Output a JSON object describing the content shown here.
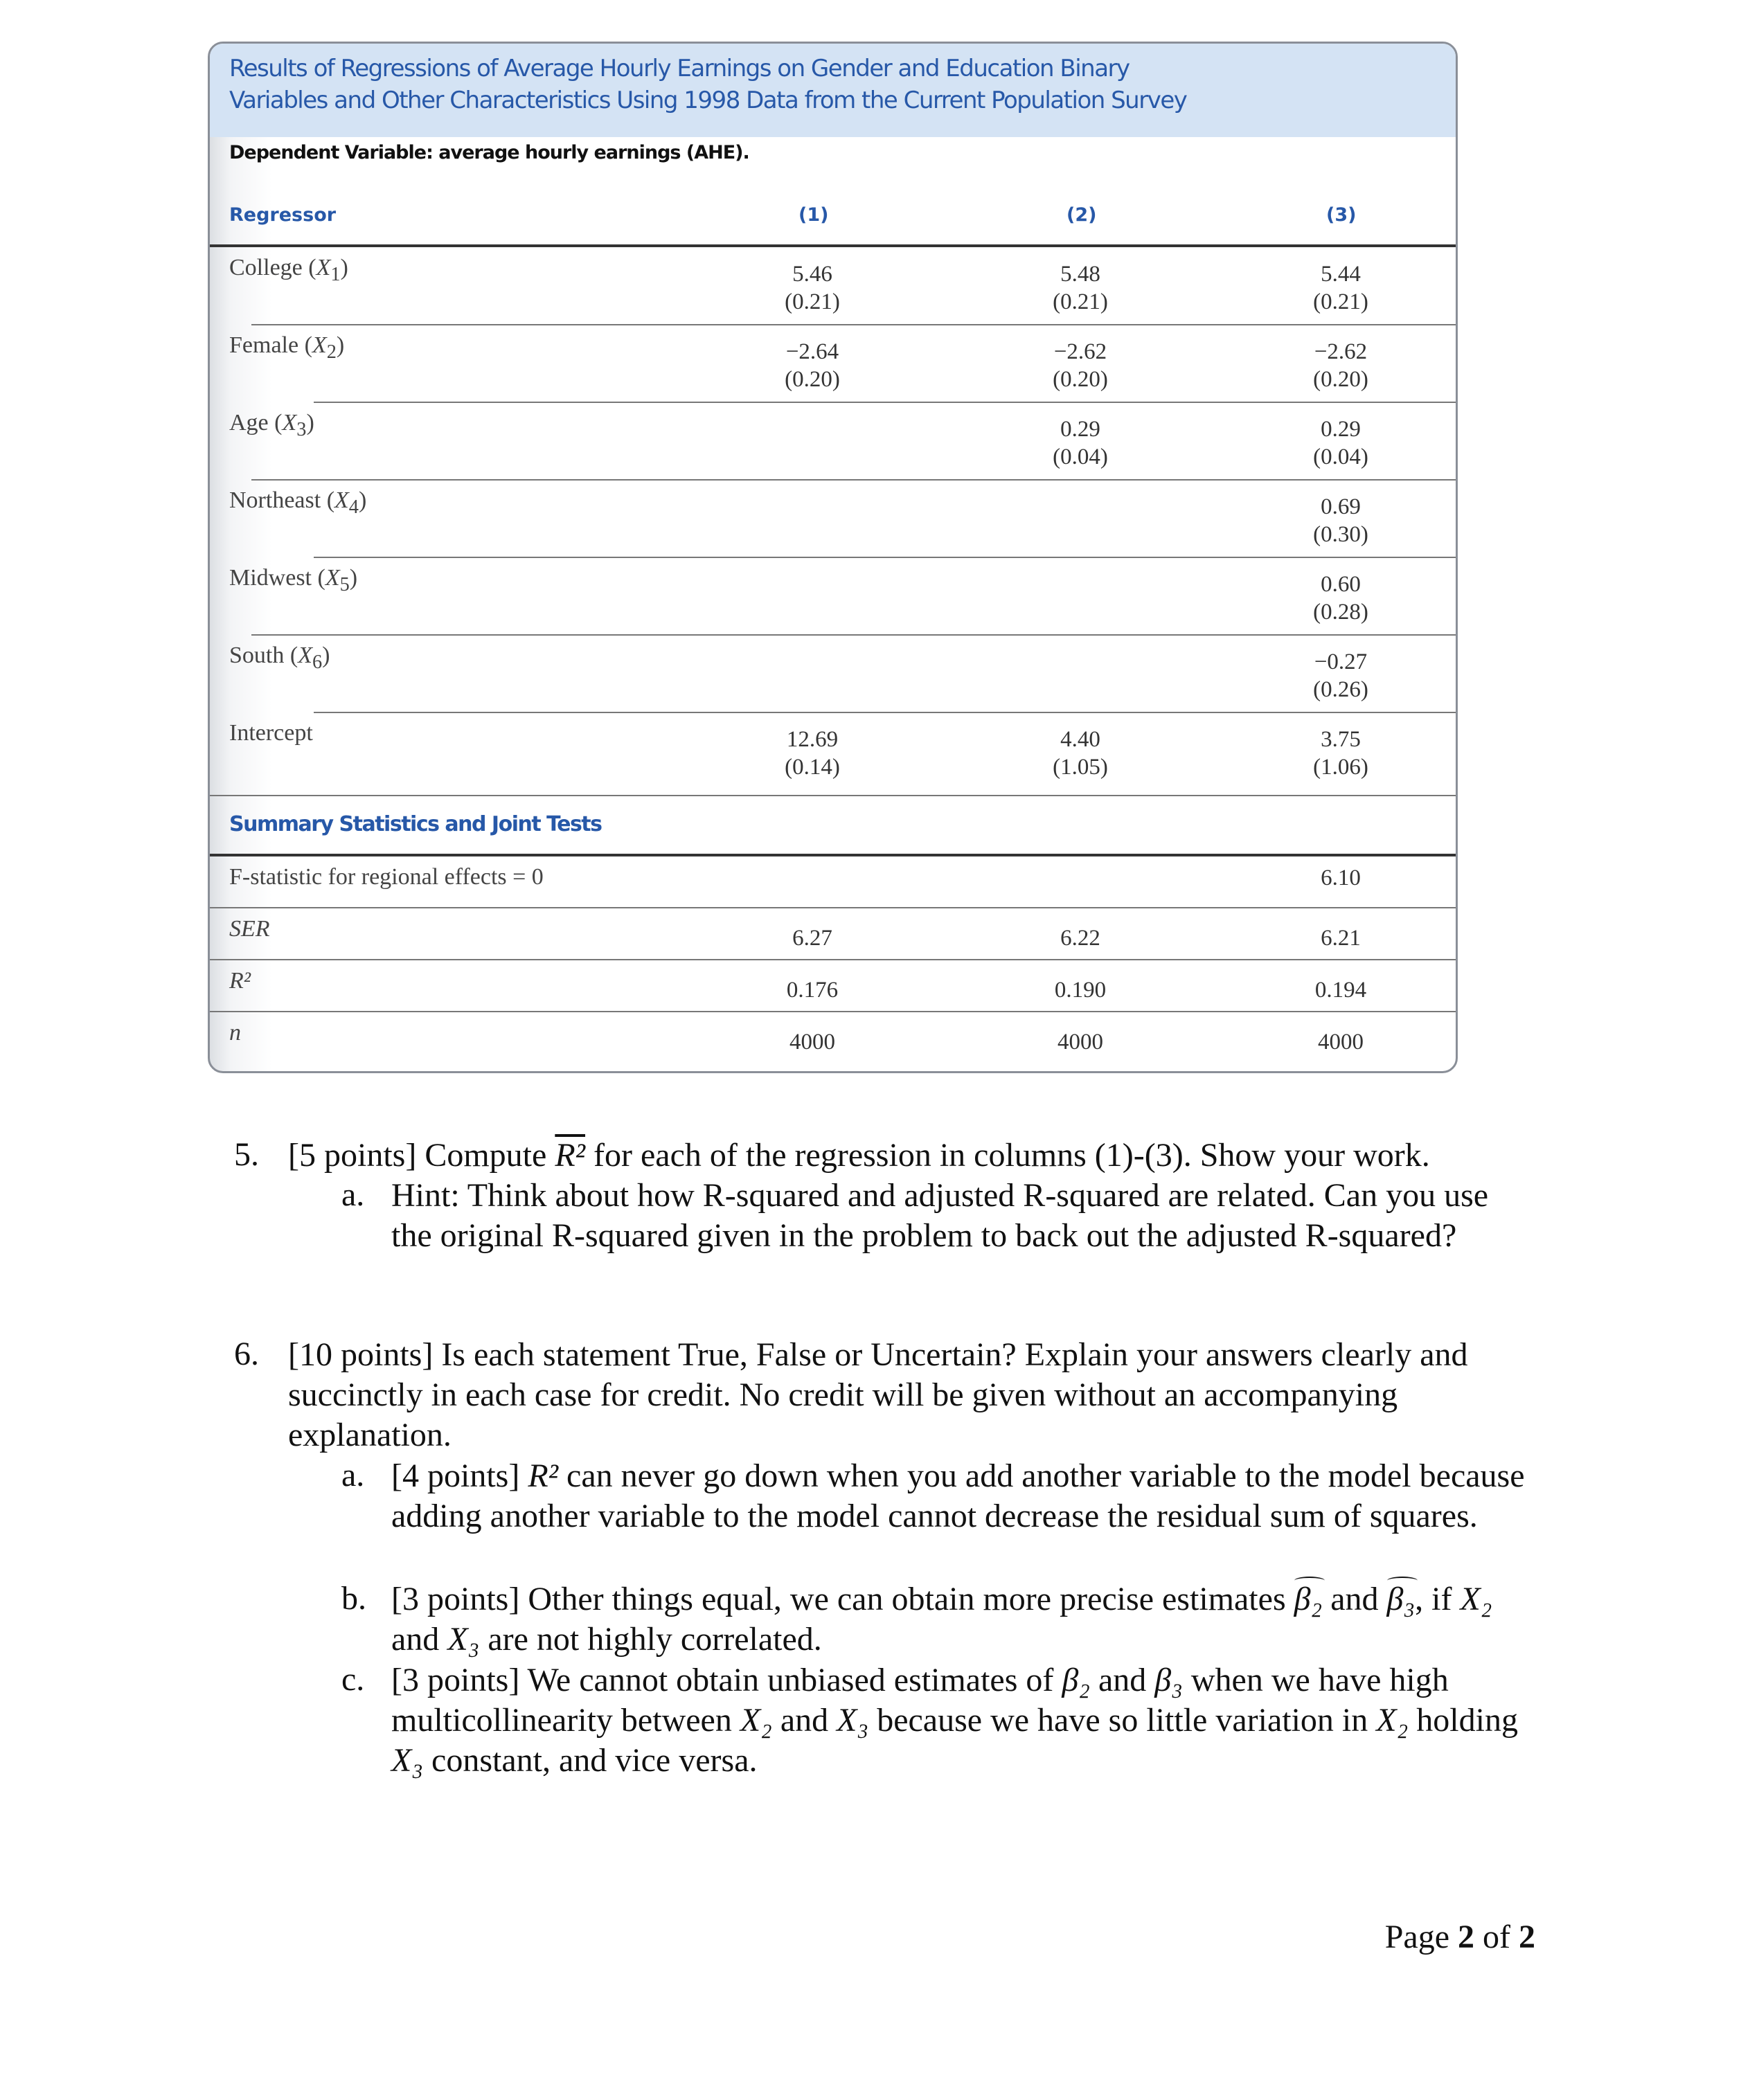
{
  "table": {
    "title_line1": "Results of Regressions of Average Hourly Earnings on Gender and Education Binary",
    "title_line2": "Variables and Other Characteristics Using 1998 Data from the Current Population Survey",
    "dependent_variable": "Dependent Variable: average hourly earnings (AHE).",
    "header": {
      "regressor": "Regressor",
      "col1": "(1)",
      "col2": "(2)",
      "col3": "(3)"
    },
    "rows": [
      {
        "label": "College",
        "var": "X",
        "sub": "1",
        "c1": "5.46",
        "c1se": "(0.21)",
        "c2": "5.48",
        "c2se": "(0.21)",
        "c3": "5.44",
        "c3se": "(0.21)"
      },
      {
        "label": "Female",
        "var": "X",
        "sub": "2",
        "c1": "−2.64",
        "c1se": "(0.20)",
        "c2": "−2.62",
        "c2se": "(0.20)",
        "c3": "−2.62",
        "c3se": "(0.20)"
      },
      {
        "label": "Age",
        "var": "X",
        "sub": "3",
        "c1": "",
        "c1se": "",
        "c2": "0.29",
        "c2se": "(0.04)",
        "c3": "0.29",
        "c3se": "(0.04)"
      },
      {
        "label": "Northeast",
        "var": "X",
        "sub": "4",
        "c1": "",
        "c1se": "",
        "c2": "",
        "c2se": "",
        "c3": "0.69",
        "c3se": "(0.30)"
      },
      {
        "label": "Midwest",
        "var": "X",
        "sub": "5",
        "c1": "",
        "c1se": "",
        "c2": "",
        "c2se": "",
        "c3": "0.60",
        "c3se": "(0.28)"
      },
      {
        "label": "South",
        "var": "X",
        "sub": "6",
        "c1": "",
        "c1se": "",
        "c2": "",
        "c2se": "",
        "c3": "−0.27",
        "c3se": "(0.26)"
      },
      {
        "label": "Intercept",
        "var": "",
        "sub": "",
        "c1": "12.69",
        "c1se": "(0.14)",
        "c2": "4.40",
        "c2se": "(1.05)",
        "c3": "3.75",
        "c3se": "(1.06)"
      }
    ],
    "summary_title": "Summary Statistics and Joint Tests",
    "summary_rows": [
      {
        "label": "F-statistic for regional effects = 0",
        "c1": "",
        "c2": "",
        "c3": "6.10"
      },
      {
        "label": "SER",
        "c1": "6.27",
        "c2": "6.22",
        "c3": "6.21"
      },
      {
        "label": "R²",
        "c1": "0.176",
        "c2": "0.190",
        "c3": "0.194"
      },
      {
        "label": "n",
        "c1": "4000",
        "c2": "4000",
        "c3": "4000"
      }
    ]
  },
  "questions": {
    "q5": {
      "number": "5.",
      "text_a": "[5 points] Compute ",
      "math": "R²",
      "text_b": " for each of the regression in columns (1)-(3). Show your work.",
      "sub_a_letter": "a.",
      "sub_a_text": "Hint: Think about how R-squared and adjusted R-squared are related. Can you use the original R-squared given in the problem to back out the adjusted R-squared?"
    },
    "q6": {
      "number": "6.",
      "text": "[10 points] Is each statement True, False or Uncertain? Explain your answers clearly and succinctly in each case for credit. No credit will be given without an accompanying explanation.",
      "a_letter": "a.",
      "a_1": "[4 points] ",
      "a_math": "R²",
      "a_2": " can never go down when you add another variable to the model because adding another variable to the model cannot decrease the residual sum of squares.",
      "b_letter": "b.",
      "b_1": "[3 points] Other things equal, we can obtain more precise estimates ",
      "b_m1": "β₂",
      "b_2": " and ",
      "b_m2": "β₃",
      "b_3": ", if ",
      "b_m3": "X₂",
      "b_4": " and ",
      "b_m4": "X₃",
      "b_5": " are not highly correlated.",
      "c_letter": "c.",
      "c_1": "[3 points] We cannot obtain unbiased estimates of ",
      "c_m1": "β₂",
      "c_2": " and ",
      "c_m2": "β₃",
      "c_3": " when we have high multicollinearity between ",
      "c_m3": "X₂",
      "c_4": " and ",
      "c_m4": "X₃",
      "c_5": " because we have so little variation in ",
      "c_m5": "X₂",
      "c_6": " holding ",
      "c_m6": "X₃",
      "c_7": " constant, and vice versa."
    }
  },
  "footer": {
    "page_label": "Page ",
    "page": "2",
    "of": " of ",
    "total": "2"
  }
}
